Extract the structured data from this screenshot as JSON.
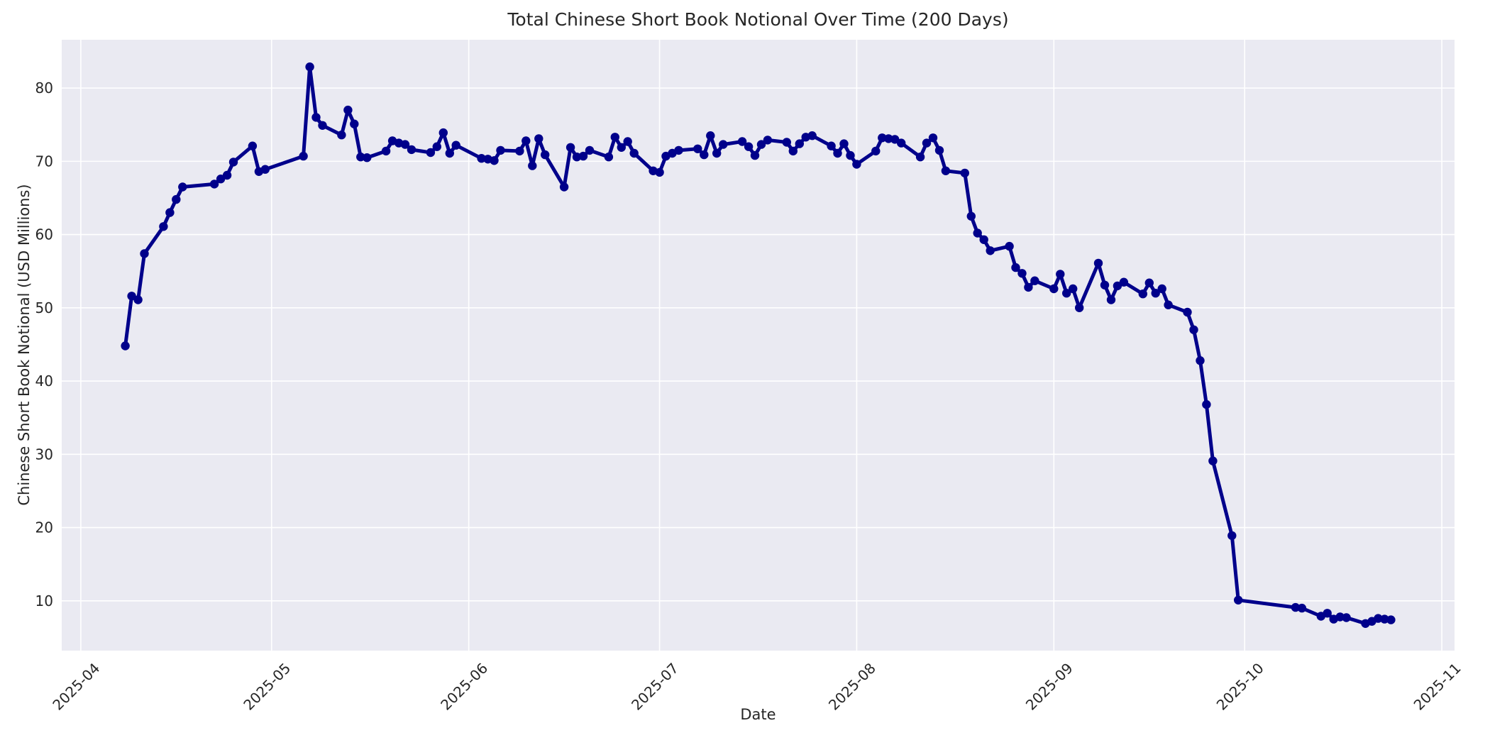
{
  "figure": {
    "title": "Total Chinese Short Book Notional Over Time (200 Days)",
    "xlabel": "Date",
    "ylabel": "Chinese Short Book Notional (USD Millions)"
  },
  "chart_data": {
    "type": "line",
    "title": "Total Chinese Short Book Notional Over Time (200 Days)",
    "xlabel": "Date",
    "ylabel": "Chinese Short Book Notional (USD Millions)",
    "grid": true,
    "legend": "none",
    "x_tick_labels": [
      "2025-04",
      "2025-05",
      "2025-06",
      "2025-07",
      "2025-08",
      "2025-09",
      "2025-10",
      "2025-11"
    ],
    "y_ticks": [
      10,
      20,
      30,
      40,
      50,
      60,
      70,
      80
    ],
    "xlim": [
      "2025-03-29",
      "2025-11-03"
    ],
    "ylim": [
      3.2,
      86.6
    ],
    "colors": {
      "line": "#00008B",
      "marker": "#00008B",
      "axes_bg": "#EAEAF2",
      "grid": "#FFFFFF",
      "text": "#262626",
      "fig_bg": "#FFFFFF"
    },
    "series": [
      {
        "name": "Total Chinese Short Book Notional",
        "x": [
          "2025-04-08",
          "2025-04-09",
          "2025-04-10",
          "2025-04-11",
          "2025-04-14",
          "2025-04-15",
          "2025-04-16",
          "2025-04-17",
          "2025-04-22",
          "2025-04-23",
          "2025-04-24",
          "2025-04-25",
          "2025-04-28",
          "2025-04-29",
          "2025-04-30",
          "2025-05-06",
          "2025-05-07",
          "2025-05-08",
          "2025-05-09",
          "2025-05-12",
          "2025-05-13",
          "2025-05-14",
          "2025-05-15",
          "2025-05-16",
          "2025-05-19",
          "2025-05-20",
          "2025-05-21",
          "2025-05-22",
          "2025-05-23",
          "2025-05-26",
          "2025-05-27",
          "2025-05-28",
          "2025-05-29",
          "2025-05-30",
          "2025-06-03",
          "2025-06-04",
          "2025-06-05",
          "2025-06-06",
          "2025-06-09",
          "2025-06-10",
          "2025-06-11",
          "2025-06-12",
          "2025-06-13",
          "2025-06-16",
          "2025-06-17",
          "2025-06-18",
          "2025-06-19",
          "2025-06-20",
          "2025-06-23",
          "2025-06-24",
          "2025-06-25",
          "2025-06-26",
          "2025-06-27",
          "2025-06-30",
          "2025-07-01",
          "2025-07-02",
          "2025-07-03",
          "2025-07-04",
          "2025-07-07",
          "2025-07-08",
          "2025-07-09",
          "2025-07-10",
          "2025-07-11",
          "2025-07-14",
          "2025-07-15",
          "2025-07-16",
          "2025-07-17",
          "2025-07-18",
          "2025-07-21",
          "2025-07-22",
          "2025-07-23",
          "2025-07-24",
          "2025-07-25",
          "2025-07-28",
          "2025-07-29",
          "2025-07-30",
          "2025-07-31",
          "2025-08-01",
          "2025-08-04",
          "2025-08-05",
          "2025-08-06",
          "2025-08-07",
          "2025-08-08",
          "2025-08-11",
          "2025-08-12",
          "2025-08-13",
          "2025-08-14",
          "2025-08-15",
          "2025-08-18",
          "2025-08-19",
          "2025-08-20",
          "2025-08-21",
          "2025-08-22",
          "2025-08-25",
          "2025-08-26",
          "2025-08-27",
          "2025-08-28",
          "2025-08-29",
          "2025-09-01",
          "2025-09-02",
          "2025-09-03",
          "2025-09-04",
          "2025-09-05",
          "2025-09-08",
          "2025-09-09",
          "2025-09-10",
          "2025-09-11",
          "2025-09-12",
          "2025-09-15",
          "2025-09-16",
          "2025-09-17",
          "2025-09-18",
          "2025-09-19",
          "2025-09-22",
          "2025-09-23",
          "2025-09-24",
          "2025-09-25",
          "2025-09-26",
          "2025-09-29",
          "2025-09-30",
          "2025-10-09",
          "2025-10-10",
          "2025-10-13",
          "2025-10-14",
          "2025-10-15",
          "2025-10-16",
          "2025-10-17",
          "2025-10-20",
          "2025-10-21",
          "2025-10-22",
          "2025-10-23",
          "2025-10-24"
        ],
        "y": [
          44.8,
          51.6,
          51.1,
          57.4,
          61.1,
          63.0,
          64.8,
          66.5,
          66.9,
          67.6,
          68.1,
          69.9,
          72.1,
          68.6,
          68.9,
          70.7,
          82.9,
          76.0,
          74.9,
          73.6,
          77.0,
          75.1,
          70.6,
          70.5,
          71.4,
          72.8,
          72.5,
          72.3,
          71.6,
          71.2,
          72.0,
          73.9,
          71.1,
          72.2,
          70.4,
          70.3,
          70.1,
          71.5,
          71.4,
          72.8,
          69.4,
          73.1,
          70.9,
          66.5,
          71.9,
          70.6,
          70.7,
          71.5,
          70.6,
          73.3,
          71.9,
          72.7,
          71.1,
          68.7,
          68.5,
          70.7,
          71.1,
          71.5,
          71.7,
          70.9,
          73.5,
          71.1,
          72.3,
          72.7,
          72.0,
          70.8,
          72.3,
          72.9,
          72.6,
          71.4,
          72.4,
          73.3,
          73.5,
          72.1,
          71.1,
          72.4,
          70.8,
          69.6,
          71.4,
          73.2,
          73.1,
          73.0,
          72.5,
          70.6,
          72.5,
          73.2,
          71.5,
          68.7,
          68.4,
          62.5,
          60.2,
          59.3,
          57.8,
          58.4,
          55.5,
          54.7,
          52.8,
          53.7,
          52.6,
          54.6,
          52.0,
          52.6,
          50.0,
          56.1,
          53.1,
          51.1,
          53.0,
          53.5,
          51.9,
          53.4,
          52.0,
          52.6,
          50.4,
          49.4,
          47.0,
          42.8,
          36.8,
          29.1,
          18.9,
          10.1,
          9.1,
          9.0,
          7.9,
          8.3,
          7.5,
          7.8,
          7.7,
          6.9,
          7.2,
          7.6,
          7.5,
          7.4
        ]
      }
    ]
  }
}
